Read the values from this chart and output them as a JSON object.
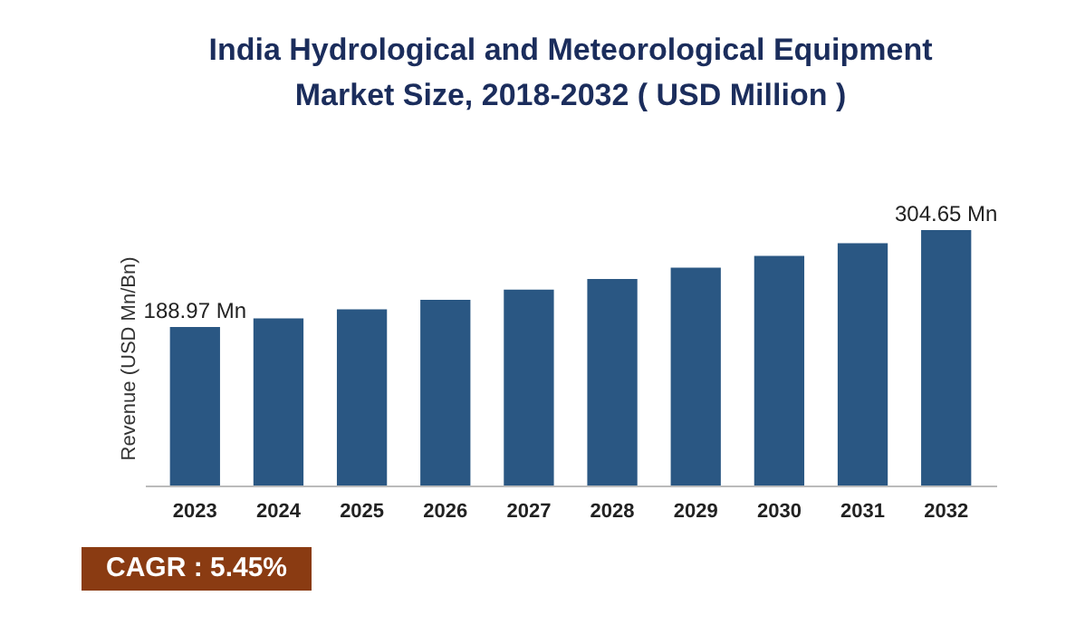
{
  "chart_data": {
    "type": "bar",
    "title": "India Hydrological and Meteorological Equipment Market Size, 2018-2032 ( USD Million )",
    "ylabel": "Revenue (USD Mn/Bn)",
    "categories": [
      "2023",
      "2024",
      "2025",
      "2026",
      "2027",
      "2028",
      "2029",
      "2030",
      "2031",
      "2032"
    ],
    "values": [
      188.97,
      199.27,
      210.13,
      221.58,
      233.66,
      246.39,
      259.82,
      273.98,
      288.91,
      304.65
    ],
    "value_labels": [
      "188.97 Mn",
      null,
      null,
      null,
      null,
      null,
      null,
      null,
      null,
      "304.65 Mn"
    ],
    "color": "#2a5783",
    "annotations": [
      "CAGR : 5.45%"
    ]
  }
}
